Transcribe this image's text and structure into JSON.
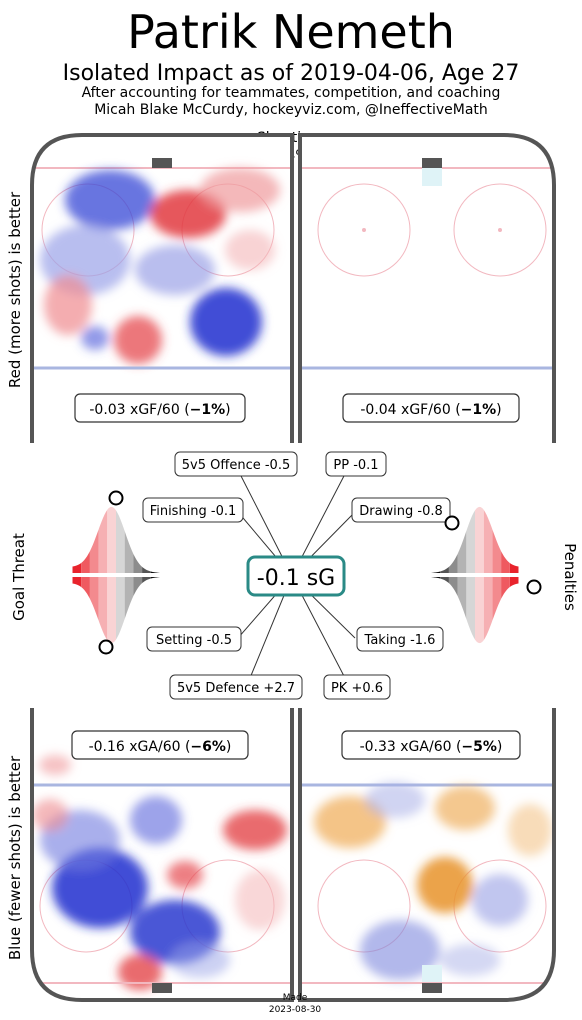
{
  "header": {
    "title": "Patrik Nemeth",
    "subtitle": "Isolated Impact as of 2019-04-06, Age 27",
    "note": "After accounting for teammates, competition, and coaching",
    "credit": "Micah Blake McCurdy, hockeyviz.com, @IneffectiveMath"
  },
  "side_labels": {
    "top": "Red (more shots) is better",
    "bottom": "Blue (fewer shots) is better",
    "left": "Goal Threat",
    "right": "Penalties"
  },
  "shootiness": {
    "label": "Shootiness",
    "value": "-4%"
  },
  "rates": {
    "ev_offence": {
      "text": "-0.03 xGF/60 (",
      "pct": "−1%",
      "close": ")"
    },
    "pp_offence": {
      "text": "-0.04 xGF/60 (",
      "pct": "−1%",
      "close": ")"
    },
    "ev_defence": {
      "text": "-0.16 xGA/60 (",
      "pct": "−6%",
      "close": ")"
    },
    "pk_defence": {
      "text": "-0.33 xGA/60 (",
      "pct": "−5%",
      "close": ")"
    }
  },
  "center": {
    "total": "-0.1 sG"
  },
  "components": {
    "ev_offence": "5v5 Offence -0.5",
    "pp": "PP -0.1",
    "finishing": "Finishing -0.1",
    "drawing": "Drawing -0.8",
    "setting": "Setting -0.5",
    "taking": "Taking -1.6",
    "ev_defence": "5v5 Defence +2.7",
    "pk": "PK +0.6"
  },
  "footer": {
    "made_label": "Made",
    "made_date": "2023-08-30"
  },
  "colors": {
    "good_red": "#e8232c",
    "bad_blue": "#1f2ecf",
    "pk_orange": "#e8932c",
    "teal": "#2a8a86",
    "rink_board": "#555555",
    "blue_line": "#a9b6e0",
    "red_line": "#f2b8c0"
  },
  "chart_data": [
    {
      "type": "heatmap",
      "name": "5v5 offence shot-rate impact",
      "value": -0.03,
      "unit": "xGF/60",
      "pct": -1
    },
    {
      "type": "heatmap",
      "name": "Power play offence shot-rate impact",
      "value": -0.04,
      "unit": "xGF/60",
      "pct": -1
    },
    {
      "type": "heatmap",
      "name": "5v5 defence shot-rate impact",
      "value": -0.16,
      "unit": "xGA/60",
      "pct": -6
    },
    {
      "type": "heatmap",
      "name": "Penalty kill shot-rate impact",
      "value": -0.33,
      "unit": "xGA/60",
      "pct": -5
    },
    {
      "type": "bar",
      "name": "Goal contributions",
      "categories": [
        "5v5 Offence",
        "PP",
        "Finishing",
        "Drawing",
        "Setting",
        "Taking",
        "5v5 Defence",
        "PK"
      ],
      "values": [
        -0.5,
        -0.1,
        -0.1,
        -0.8,
        -0.5,
        -1.6,
        2.7,
        0.6
      ],
      "total": -0.1,
      "total_unit": "sG"
    },
    {
      "type": "area",
      "name": "Goal Threat percentile distributions",
      "series": [
        {
          "name": "Finishing",
          "percentile": 0.98
        },
        {
          "name": "Setting",
          "percentile": 0.02
        }
      ]
    },
    {
      "type": "area",
      "name": "Penalties percentile distributions",
      "series": [
        {
          "name": "Drawing",
          "percentile": 0.85
        },
        {
          "name": "Taking",
          "percentile": 0.02
        }
      ]
    }
  ]
}
